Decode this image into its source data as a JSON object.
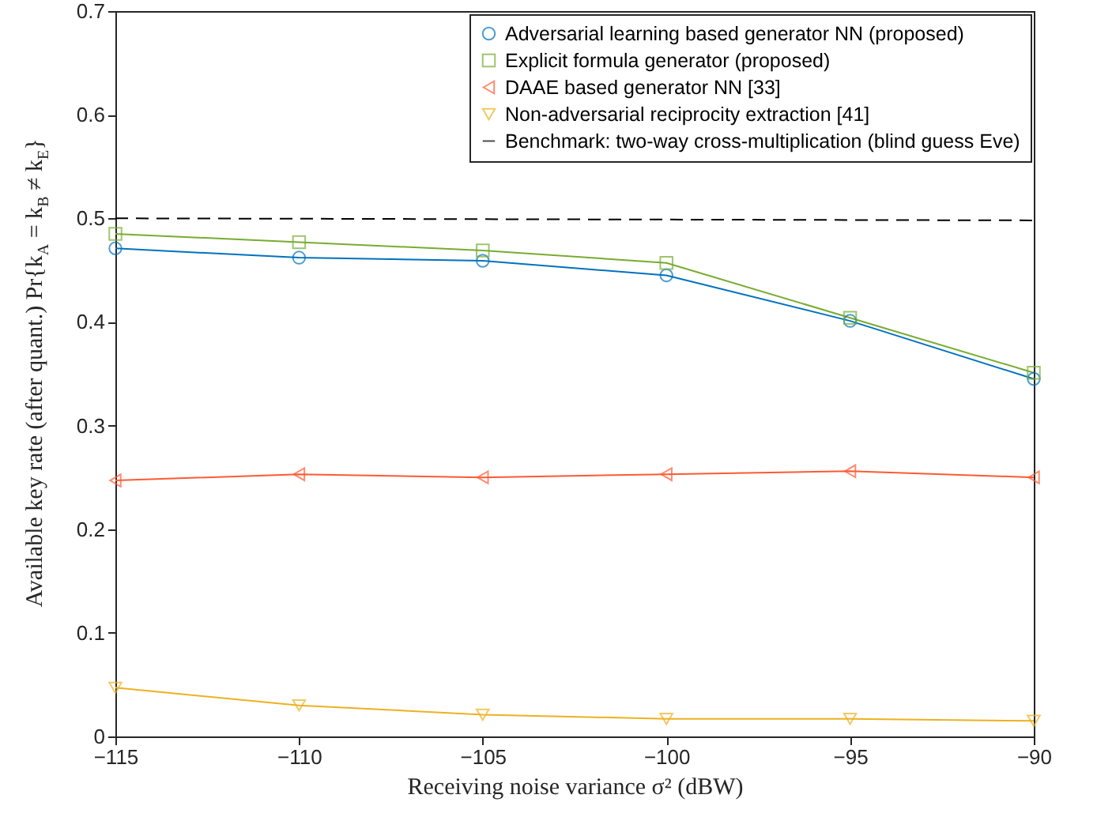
{
  "chart_data": {
    "type": "line",
    "xlabel": "Receiving noise variance σ² (dBW)",
    "ylabel": "Available key rate (after quant.)  Pr{k$_{A}$ = k$_{B}$ ≠ k$_{E}$}",
    "x": [
      -115,
      -110,
      -105,
      -100,
      -95,
      -90
    ],
    "series": [
      {
        "name": "Adversarial learning based generator NN (proposed)",
        "color": "#0072bd",
        "marker": "circle",
        "values": [
          0.471,
          0.462,
          0.459,
          0.445,
          0.401,
          0.345
        ]
      },
      {
        "name": "Explicit formula generator (proposed)",
        "color": "#77ac30",
        "marker": "square",
        "values": [
          0.485,
          0.477,
          0.469,
          0.457,
          0.404,
          0.351
        ]
      },
      {
        "name": "DAAE based generator NN [33]",
        "color": "#ff5a32",
        "marker": "triangle-left",
        "values": [
          0.247,
          0.253,
          0.25,
          0.253,
          0.256,
          0.25
        ]
      },
      {
        "name": "Non-adversarial reciprocity extraction [41]",
        "color": "#edb120",
        "marker": "triangle-down",
        "values": [
          0.047,
          0.03,
          0.021,
          0.017,
          0.017,
          0.015
        ]
      },
      {
        "name": "Benchmark: two-way cross-multiplication (blind guess Eve)",
        "color": "#000000",
        "marker": "none",
        "line_style": "dashed",
        "x": [
          -115,
          -90
        ],
        "values": [
          0.5,
          0.498
        ]
      }
    ],
    "xlim": [
      -115,
      -90
    ],
    "xticks": [
      -115,
      -110,
      -105,
      -100,
      -95,
      -90
    ],
    "ylim": [
      0,
      0.7
    ],
    "yticks": [
      0,
      0.1,
      0.2,
      0.3,
      0.4,
      0.5,
      0.6,
      0.7
    ],
    "grid": false,
    "legend": "top right"
  }
}
